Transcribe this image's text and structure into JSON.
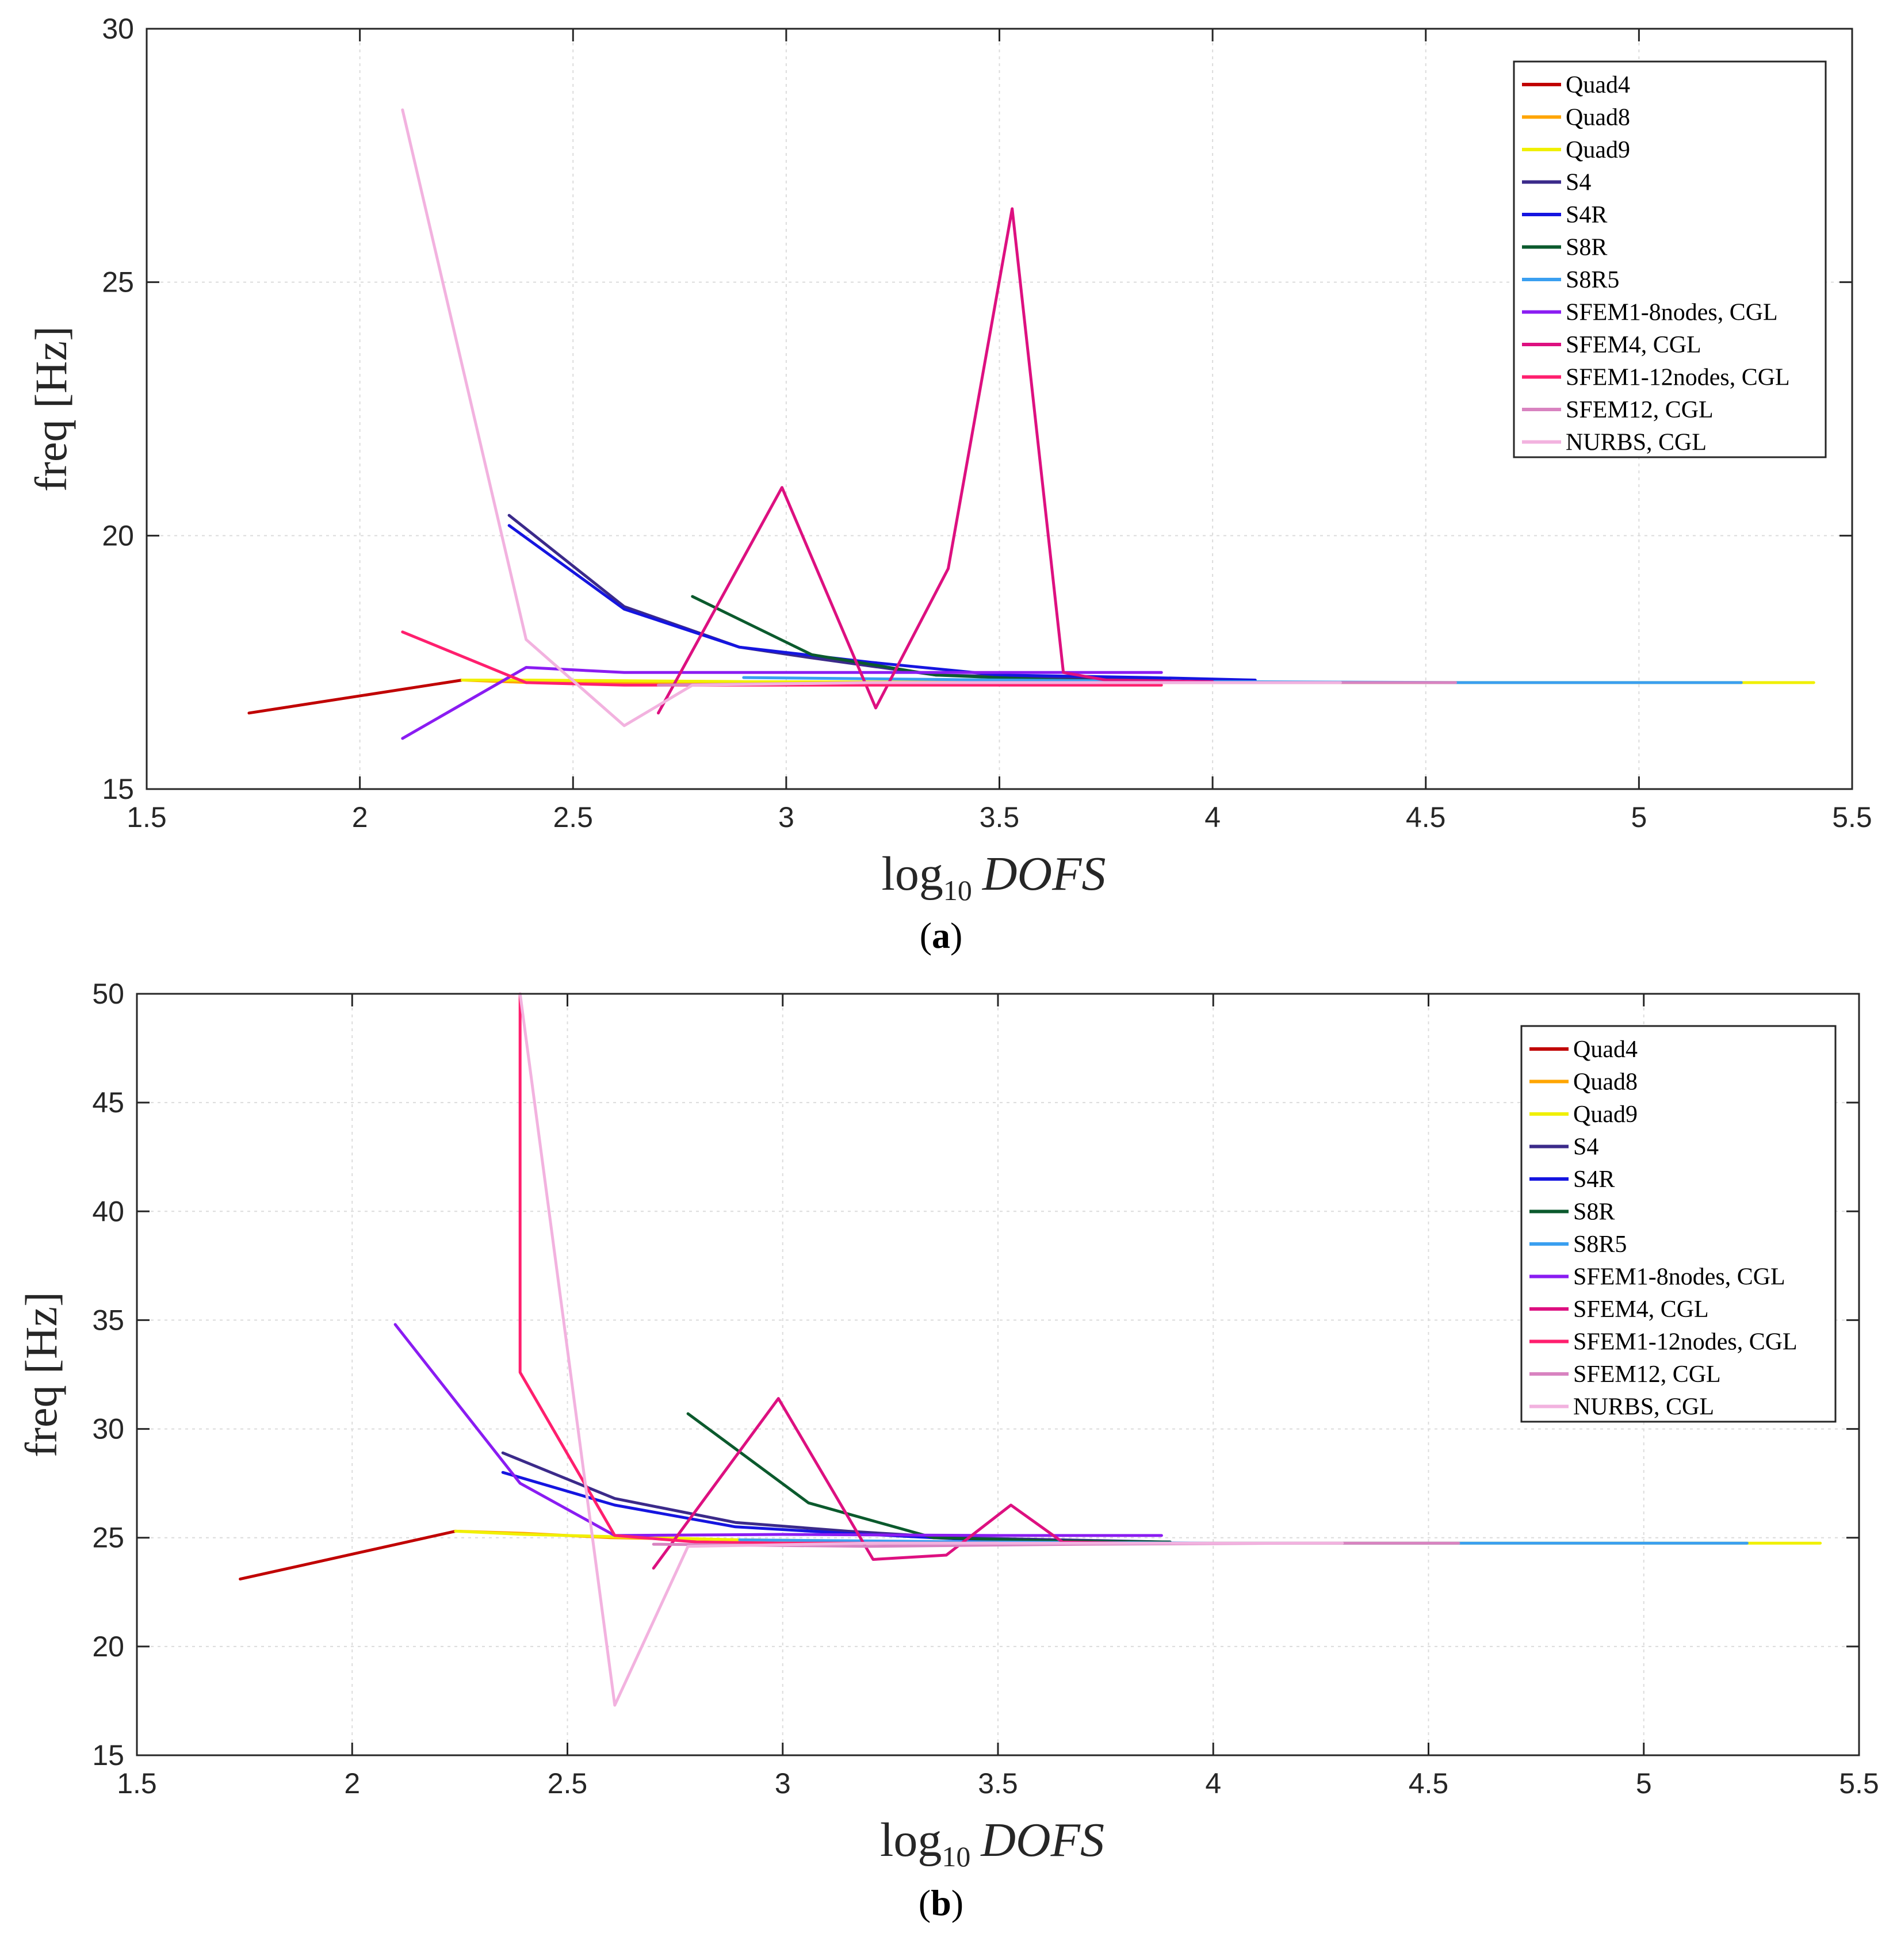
{
  "chart_data": [
    {
      "type": "line",
      "panel_label": "a",
      "xlabel": "log10 DOFS",
      "ylabel": "freq [Hz]",
      "xlim": [
        1.5,
        5.5
      ],
      "ylim": [
        15,
        30
      ],
      "xticks": [
        "1.5",
        "2",
        "2.5",
        "3",
        "3.5",
        "4",
        "4.5",
        "5",
        "5.5"
      ],
      "yticks": [
        "15",
        "20",
        "25",
        "30"
      ],
      "grid": true,
      "legend_position": "top-right",
      "series": [
        {
          "name": "Quad4",
          "color": "#c00000",
          "x": [
            1.74,
            2.24
          ],
          "y": [
            16.5,
            17.15
          ]
        },
        {
          "name": "Quad8",
          "color": "#ffa500",
          "x": [
            2.24,
            2.4,
            2.9,
            3.4,
            3.9
          ],
          "y": [
            17.15,
            17.1,
            17.1,
            17.1,
            17.1
          ]
        },
        {
          "name": "Quad9",
          "color": "#f0f000",
          "x": [
            2.24,
            2.4,
            2.9,
            3.4,
            3.9,
            4.4,
            4.9,
            5.24,
            5.41
          ],
          "y": [
            17.15,
            17.15,
            17.12,
            17.11,
            17.1,
            17.1,
            17.1,
            17.1,
            17.1
          ]
        },
        {
          "name": "S4",
          "color": "#3b2a8a",
          "x": [
            2.35,
            2.62,
            2.89,
            3.05,
            3.35,
            3.65,
            3.9
          ],
          "y": [
            20.4,
            18.6,
            17.8,
            17.6,
            17.25,
            17.2,
            17.15
          ]
        },
        {
          "name": "S4R",
          "color": "#1515e0",
          "x": [
            2.35,
            2.62,
            2.89,
            3.2,
            3.5,
            3.85,
            4.1
          ],
          "y": [
            20.2,
            18.55,
            17.8,
            17.5,
            17.25,
            17.2,
            17.15
          ]
        },
        {
          "name": "S8R",
          "color": "#0b5a2d",
          "x": [
            2.78,
            3.06,
            3.35,
            3.64,
            3.9
          ],
          "y": [
            18.8,
            17.65,
            17.25,
            17.15,
            17.12
          ]
        },
        {
          "name": "S8R5",
          "color": "#3a9ff0",
          "x": [
            2.9,
            3.5,
            4.0,
            4.6,
            5.24
          ],
          "y": [
            17.2,
            17.15,
            17.12,
            17.1,
            17.1
          ]
        },
        {
          "name": "SFEM1-8nodes, CGL",
          "color": "#8a1cf2",
          "x": [
            2.1,
            2.39,
            2.62,
            3.0,
            3.5,
            3.88
          ],
          "y": [
            16.0,
            17.4,
            17.3,
            17.3,
            17.3,
            17.3
          ]
        },
        {
          "name": "SFEM4, CGL",
          "color": "#dd1080",
          "x": [
            2.7,
            2.99,
            3.21,
            3.38,
            3.53,
            3.65,
            3.75,
            4.0
          ],
          "y": [
            16.5,
            20.95,
            16.6,
            19.35,
            26.45,
            17.3,
            17.15,
            17.12
          ]
        },
        {
          "name": "SFEM1-12nodes, CGL",
          "color": "#ff1f6e",
          "x": [
            2.1,
            2.39,
            2.62,
            3.0,
            3.5,
            3.88
          ],
          "y": [
            18.1,
            17.1,
            17.05,
            17.05,
            17.05,
            17.05
          ]
        },
        {
          "name": "SFEM12, CGL",
          "color": "#d883c0",
          "x": [
            2.7,
            3.2,
            3.7,
            4.2,
            4.57
          ],
          "y": [
            17.05,
            17.1,
            17.1,
            17.1,
            17.1
          ]
        },
        {
          "name": "NURBS, CGL",
          "color": "#f2b2df",
          "x": [
            2.1,
            2.39,
            2.62,
            2.78,
            3.2,
            3.8,
            4.3
          ],
          "y": [
            28.4,
            17.95,
            16.25,
            17.05,
            17.1,
            17.1,
            17.1
          ]
        }
      ]
    },
    {
      "type": "line",
      "panel_label": "b",
      "xlabel": "log10 DOFS",
      "ylabel": "freq [Hz]",
      "xlim": [
        1.5,
        5.5
      ],
      "ylim": [
        15,
        50
      ],
      "xticks": [
        "1.5",
        "2",
        "2.5",
        "3",
        "3.5",
        "4",
        "4.5",
        "5",
        "5.5"
      ],
      "yticks": [
        "15",
        "20",
        "25",
        "30",
        "35",
        "40",
        "45",
        "50"
      ],
      "grid": true,
      "legend_position": "top-right",
      "series": [
        {
          "name": "Quad4",
          "color": "#c00000",
          "x": [
            1.74,
            2.24
          ],
          "y": [
            23.1,
            25.3
          ]
        },
        {
          "name": "Quad8",
          "color": "#ffa500",
          "x": [
            2.24,
            2.4,
            2.6,
            2.9,
            3.4,
            3.9
          ],
          "y": [
            25.3,
            25.2,
            25.0,
            24.9,
            24.8,
            24.75
          ]
        },
        {
          "name": "Quad9",
          "color": "#f0f000",
          "x": [
            2.24,
            2.4,
            2.9,
            3.4,
            3.9,
            4.4,
            4.9,
            5.24,
            5.41
          ],
          "y": [
            25.3,
            25.15,
            24.9,
            24.8,
            24.75,
            24.75,
            24.75,
            24.75,
            24.75
          ]
        },
        {
          "name": "S4",
          "color": "#3b2a8a",
          "x": [
            2.35,
            2.61,
            2.89,
            3.15,
            3.4,
            3.65,
            3.9
          ],
          "y": [
            28.9,
            26.8,
            25.7,
            25.3,
            25.0,
            24.9,
            24.8
          ]
        },
        {
          "name": "S4R",
          "color": "#1515e0",
          "x": [
            2.35,
            2.61,
            2.89,
            3.15,
            3.4,
            3.65,
            3.9
          ],
          "y": [
            28.0,
            26.5,
            25.5,
            25.2,
            24.95,
            24.85,
            24.8
          ]
        },
        {
          "name": "S8R",
          "color": "#0b5a2d",
          "x": [
            2.78,
            3.06,
            3.35,
            3.64,
            3.9
          ],
          "y": [
            30.7,
            26.6,
            25.0,
            24.85,
            24.8
          ]
        },
        {
          "name": "S8R5",
          "color": "#3a9ff0",
          "x": [
            2.9,
            3.5,
            4.0,
            4.6,
            5.24
          ],
          "y": [
            24.9,
            24.8,
            24.75,
            24.75,
            24.75
          ]
        },
        {
          "name": "SFEM1-8nodes, CGL",
          "color": "#8a1cf2",
          "x": [
            2.1,
            2.39,
            2.61,
            3.0,
            3.5,
            3.88
          ],
          "y": [
            34.8,
            27.5,
            25.1,
            25.15,
            25.1,
            25.1
          ]
        },
        {
          "name": "SFEM4, CGL",
          "color": "#dd1080",
          "x": [
            2.7,
            2.99,
            3.21,
            3.38,
            3.53,
            3.65,
            3.8
          ],
          "y": [
            23.6,
            31.4,
            24.0,
            24.2,
            26.5,
            24.8,
            24.75
          ]
        },
        {
          "name": "SFEM1-12nodes, CGL",
          "color": "#ff1f6e",
          "x": [
            2.39,
            2.39,
            2.61,
            2.8,
            3.0,
            3.5
          ],
          "y": [
            50.0,
            32.6,
            25.1,
            24.8,
            24.75,
            24.75
          ]
        },
        {
          "name": "SFEM12, CGL",
          "color": "#d883c0",
          "x": [
            2.7,
            3.2,
            3.7,
            4.2,
            4.57
          ],
          "y": [
            24.7,
            24.6,
            24.7,
            24.75,
            24.75
          ]
        },
        {
          "name": "NURBS, CGL",
          "color": "#f2b2df",
          "x": [
            2.39,
            2.61,
            2.78,
            3.2,
            3.8,
            4.3
          ],
          "y": [
            50.0,
            17.3,
            24.6,
            24.75,
            24.75,
            24.75
          ]
        }
      ]
    }
  ]
}
